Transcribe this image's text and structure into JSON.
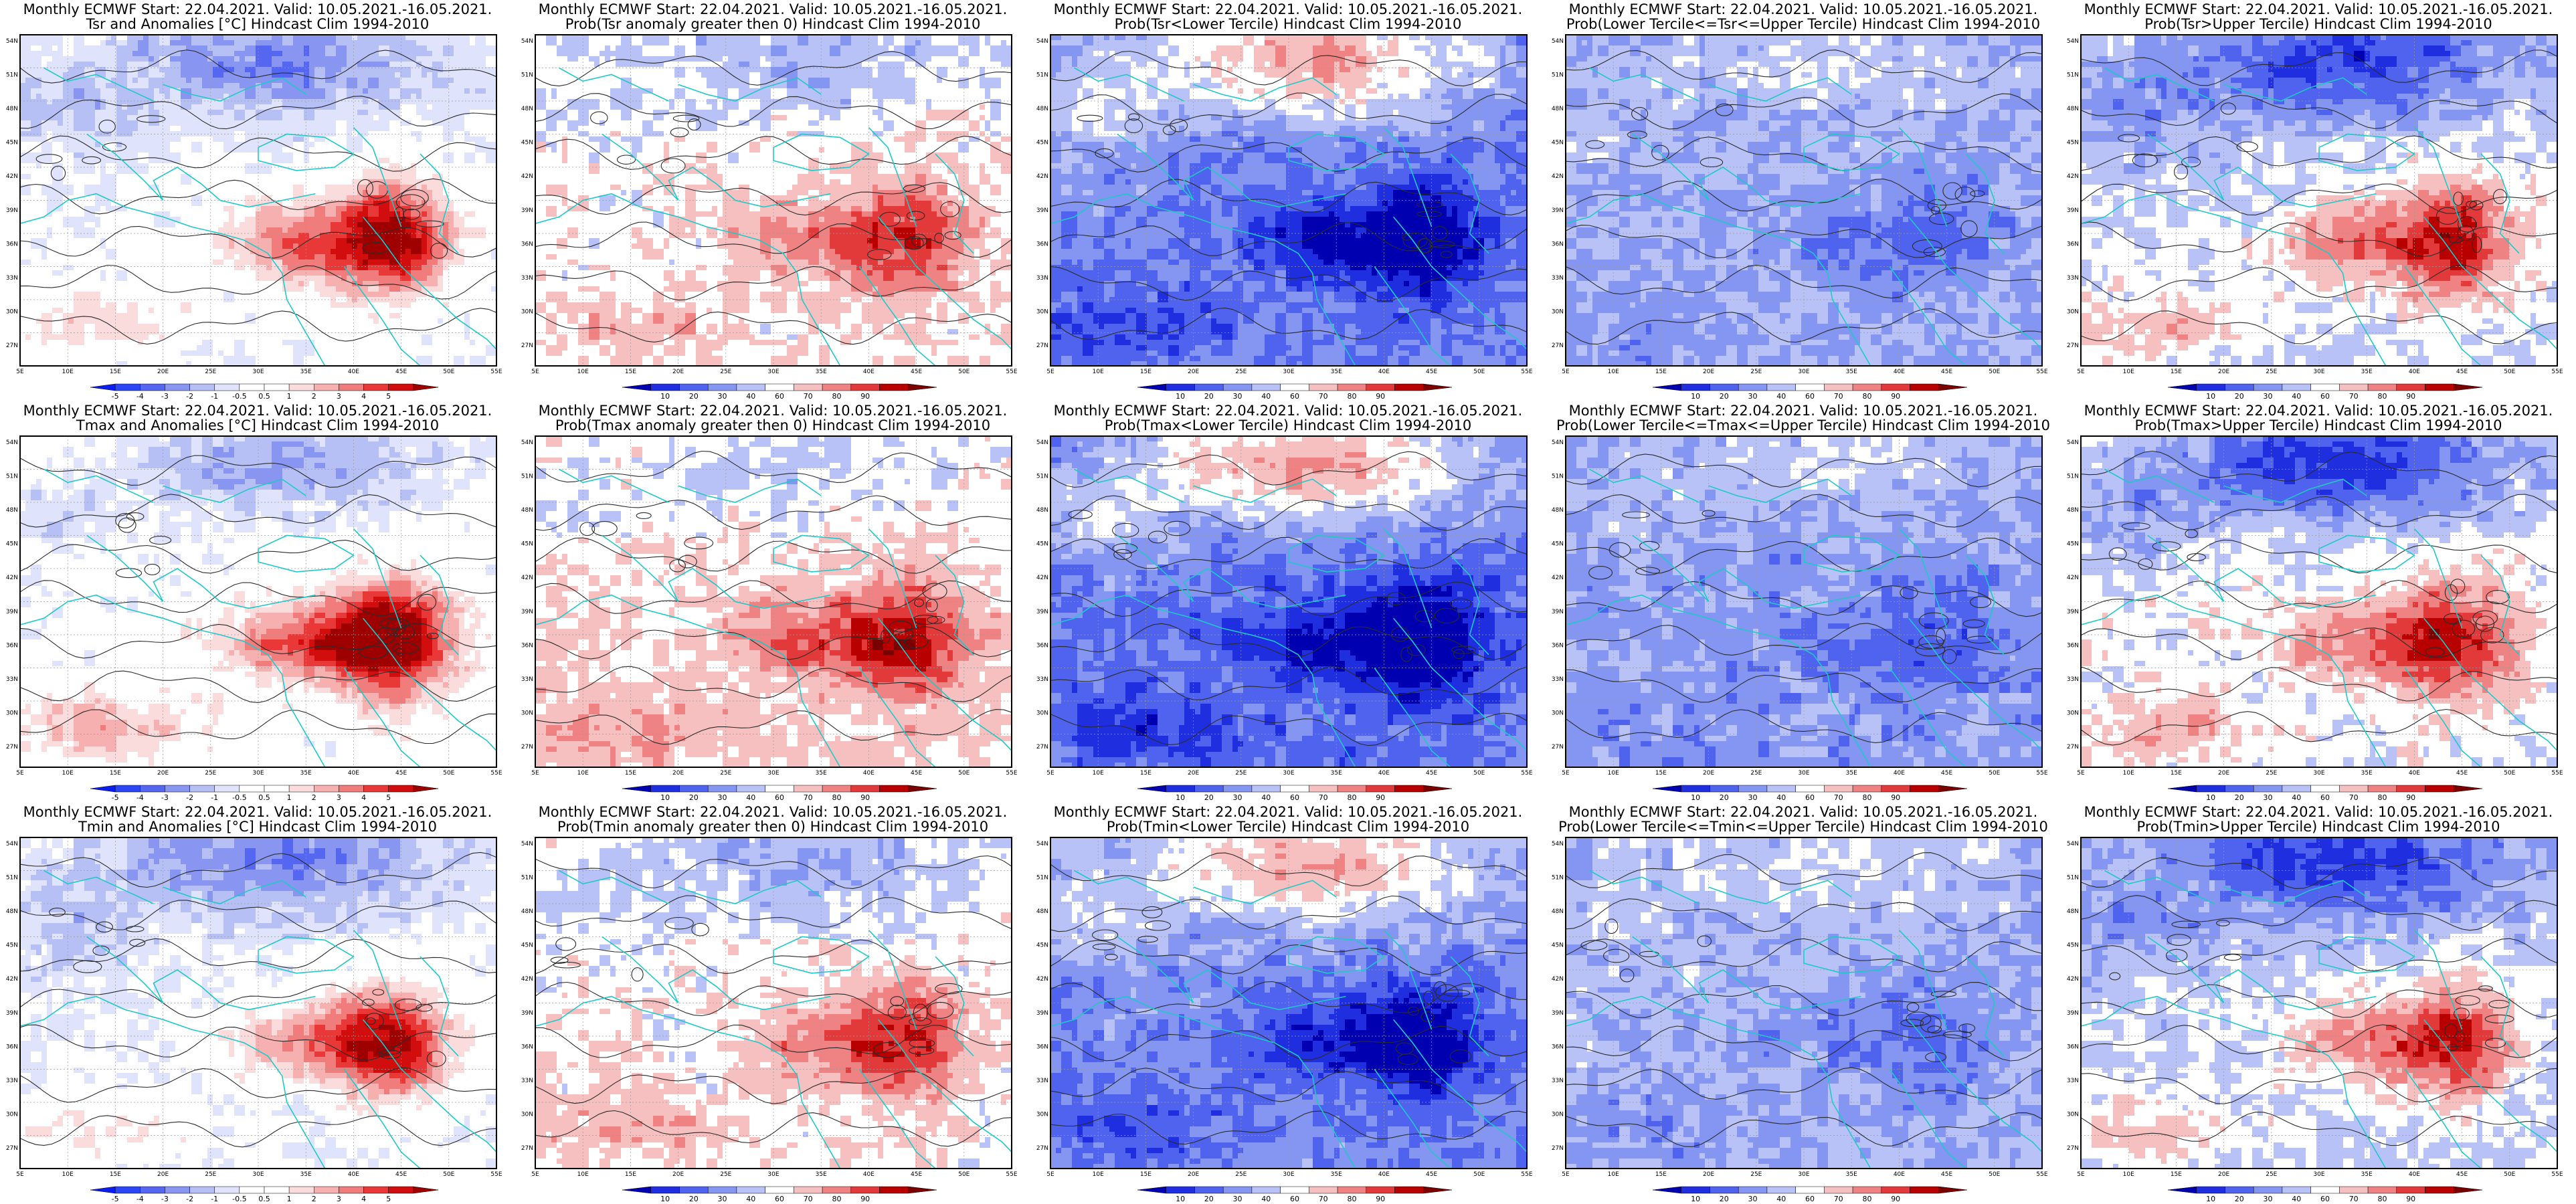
{
  "figure": {
    "colors": {
      "anomaly": [
        "#0b1ef0",
        "#2a46f5",
        "#5566f0",
        "#8896f2",
        "#b7c0f5",
        "#dfe3fb",
        "#ffffff",
        "#ffffff",
        "#fbdcdc",
        "#f6b0b0",
        "#f07c7c",
        "#e83838",
        "#d20d0d",
        "#9e0000"
      ],
      "probability": [
        "#0000b0",
        "#1f2fe0",
        "#4f63ee",
        "#8495f2",
        "#b9c2f6",
        "#ffffff",
        "#f7c0c0",
        "#ef8282",
        "#e23a3a",
        "#b80000",
        "#7a0000"
      ]
    },
    "lon_ticks": [
      "5E",
      "10E",
      "15E",
      "20E",
      "25E",
      "30E",
      "35E",
      "40E",
      "45E",
      "50E",
      "55E"
    ],
    "lat_ticks": [
      "54N",
      "51N",
      "48N",
      "45N",
      "42N",
      "39N",
      "36N",
      "33N",
      "30N",
      "27N"
    ],
    "colorbars": {
      "anomaly": [
        "-5",
        "-4",
        "-3",
        "-2",
        "-1",
        "-0.5",
        "0.5",
        "1",
        "2",
        "3",
        "4",
        "5"
      ],
      "probability": [
        "10",
        "20",
        "30",
        "40",
        "60",
        "70",
        "80",
        "90"
      ]
    },
    "panels": [
      {
        "t1": "Monthly ECMWF Start: 22.04.2021. Valid: 10.05.2021.-16.05.2021.",
        "t2": "Tsr and Anomalies [°C] Hindcast Clim 1994-2010",
        "type": "anomaly",
        "cb": "anomaly",
        "base": -0.5,
        "hot": 2.4,
        "cold": -1.0
      },
      {
        "t1": "Monthly ECMWF Start: 22.04.2021. Valid: 10.05.2021.-16.05.2021.",
        "t2": "Prob(Tsr anomaly greater then 0) Hindcast Clim 1994-2010",
        "type": "prob",
        "cb": "probability",
        "base": 0.15,
        "hot": 1.1,
        "cold": -0.5
      },
      {
        "t1": "Monthly ECMWF Start: 22.04.2021. Valid: 10.05.2021.-16.05.2021.",
        "t2": "Prob(Tsr<Lower Tercile) Hindcast Clim 1994-2010",
        "type": "prob",
        "cb": "probability",
        "base": -1.9,
        "hot": -1.4,
        "cold": 1.4
      },
      {
        "t1": "Monthly ECMWF Start: 22.04.2021. Valid: 10.05.2021.-16.05.2021.",
        "t2": "Prob(Lower Tercile<=Tsr<=Upper Tercile) Hindcast Clim 1994-2010",
        "type": "prob",
        "cb": "probability",
        "base": -1.2,
        "hot": -0.5,
        "cold": 0.3
      },
      {
        "t1": "Monthly ECMWF Start: 22.04.2021. Valid: 10.05.2021.-16.05.2021.",
        "t2": "Prob(Tsr>Upper Tercile) Hindcast Clim 1994-2010",
        "type": "prob",
        "cb": "probability",
        "base": -0.4,
        "hot": 1.6,
        "cold": -1.2
      },
      {
        "t1": "Monthly ECMWF Start: 22.04.2021. Valid: 10.05.2021.-16.05.2021.",
        "t2": "Tmax and Anomalies [°C] Hindcast Clim 1994-2010",
        "type": "anomaly",
        "cb": "anomaly",
        "base": -0.2,
        "hot": 2.6,
        "cold": -0.9
      },
      {
        "t1": "Monthly ECMWF Start: 22.04.2021. Valid: 10.05.2021.-16.05.2021.",
        "t2": "Prob(Tmax anomaly greater then 0) Hindcast Clim 1994-2010",
        "type": "prob",
        "cb": "probability",
        "base": 0.35,
        "hot": 1.3,
        "cold": -0.5
      },
      {
        "t1": "Monthly ECMWF Start: 22.04.2021. Valid: 10.05.2021.-16.05.2021.",
        "t2": "Prob(Tmax<Lower Tercile) Hindcast Clim 1994-2010",
        "type": "prob",
        "cb": "probability",
        "base": -2.1,
        "hot": -1.4,
        "cold": 1.6
      },
      {
        "t1": "Monthly ECMWF Start: 22.04.2021. Valid: 10.05.2021.-16.05.2021.",
        "t2": "Prob(Lower Tercile<=Tmax<=Upper Tercile) Hindcast Clim 1994-2010",
        "type": "prob",
        "cb": "probability",
        "base": -1.4,
        "hot": -0.5,
        "cold": 0.4
      },
      {
        "t1": "Monthly ECMWF Start: 22.04.2021. Valid: 10.05.2021.-16.05.2021.",
        "t2": "Prob(Tmax>Upper Tercile) Hindcast Clim 1994-2010",
        "type": "prob",
        "cb": "probability",
        "base": -0.1,
        "hot": 1.4,
        "cold": -1.4
      },
      {
        "t1": "Monthly ECMWF Start: 22.04.2021. Valid: 10.05.2021.-16.05.2021.",
        "t2": "Tmin and Anomalies [°C] Hindcast Clim 1994-2010",
        "type": "anomaly",
        "cb": "anomaly",
        "base": -0.6,
        "hot": 2.2,
        "cold": -1.0
      },
      {
        "t1": "Monthly ECMWF Start: 22.04.2021. Valid: 10.05.2021.-16.05.2021.",
        "t2": "Prob(Tmin anomaly greater then 0) Hindcast Clim 1994-2010",
        "type": "prob",
        "cb": "probability",
        "base": 0.1,
        "hot": 1.2,
        "cold": -0.6
      },
      {
        "t1": "Monthly ECMWF Start: 22.04.2021. Valid: 10.05.2021.-16.05.2021.",
        "t2": "Prob(Tmin<Lower Tercile) Hindcast Clim 1994-2010",
        "type": "prob",
        "cb": "probability",
        "base": -1.8,
        "hot": -1.3,
        "cold": 1.3
      },
      {
        "t1": "Monthly ECMWF Start: 22.04.2021. Valid: 10.05.2021.-16.05.2021.",
        "t2": "Prob(Lower Tercile<=Tmin<=Upper Tercile) Hindcast Clim 1994-2010",
        "type": "prob",
        "cb": "probability",
        "base": -1.1,
        "hot": -0.5,
        "cold": 0.3
      },
      {
        "t1": "Monthly ECMWF Start: 22.04.2021. Valid: 10.05.2021.-16.05.2021.",
        "t2": "Prob(Tmin>Upper Tercile) Hindcast Clim 1994-2010",
        "type": "prob",
        "cb": "probability",
        "base": -0.5,
        "hot": 1.5,
        "cold": -1.2
      }
    ]
  }
}
